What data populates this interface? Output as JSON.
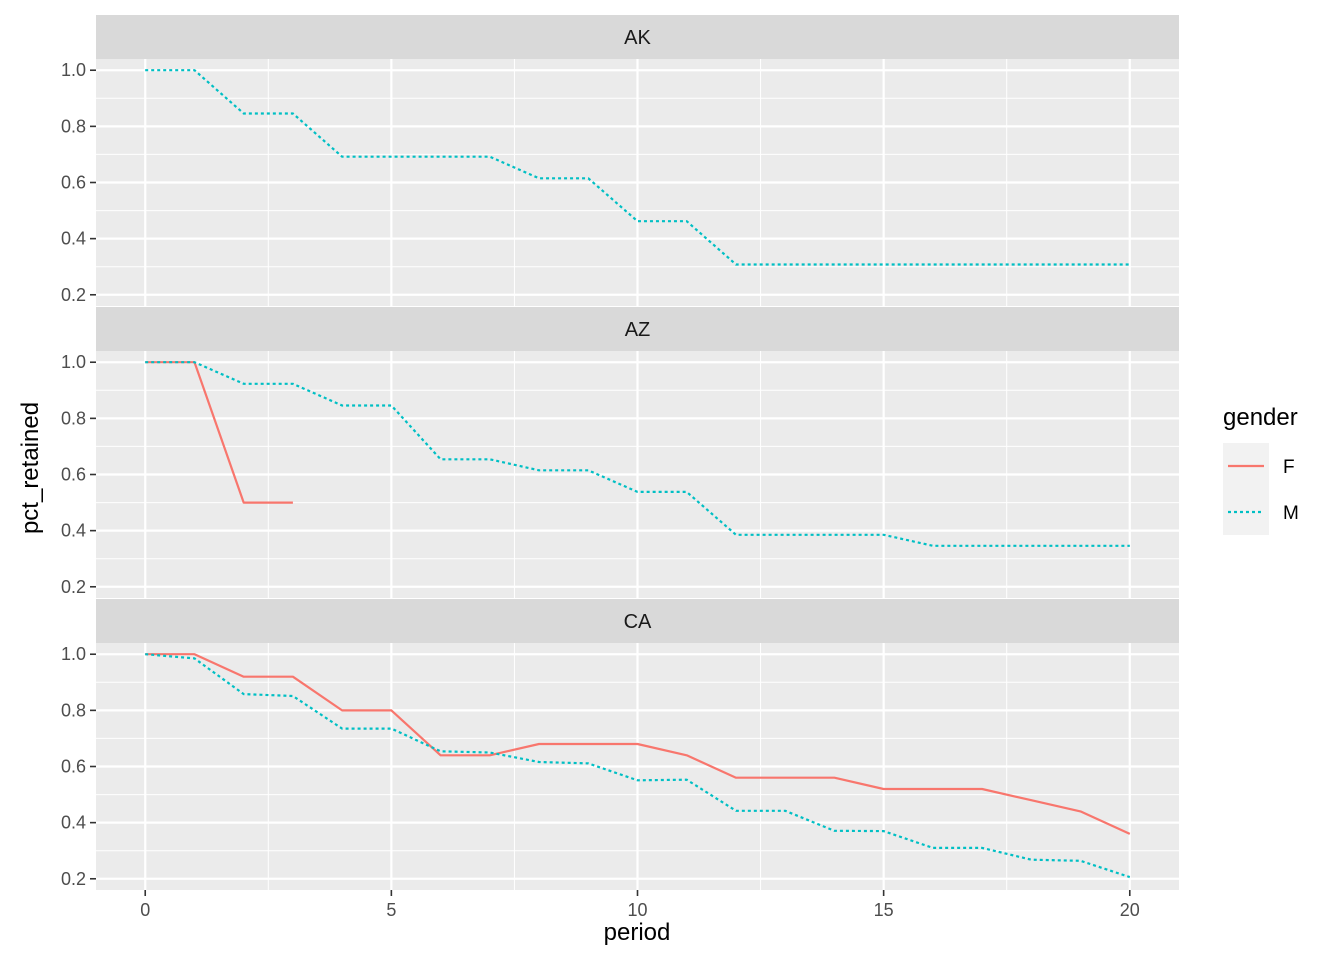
{
  "chart_data": {
    "type": "line",
    "facet_by": "state",
    "xlabel": "period",
    "ylabel": "pct_retained",
    "xlim": [
      -1,
      21
    ],
    "ylim": [
      0.16,
      1.04
    ],
    "x_ticks": [
      0,
      5,
      10,
      15,
      20
    ],
    "x_tick_labels": [
      "0",
      "5",
      "10",
      "15",
      "20"
    ],
    "y_ticks": [
      0.2,
      0.4,
      0.6,
      0.8,
      1.0
    ],
    "y_tick_labels": [
      "0.2",
      "0.4",
      "0.6",
      "0.8",
      "1.0"
    ],
    "grid": true,
    "legend": {
      "title": "gender",
      "position": "right",
      "entries": [
        {
          "label": "F",
          "color": "#F8766D",
          "linetype": "solid"
        },
        {
          "label": "M",
          "color": "#00BFC4",
          "linetype": "dotted"
        }
      ]
    },
    "panels": [
      {
        "title": "AK",
        "series": [
          {
            "name": "M",
            "x": [
              0,
              1,
              2,
              3,
              4,
              5,
              6,
              7,
              8,
              9,
              10,
              11,
              12,
              13,
              14,
              15,
              16,
              17,
              18,
              19,
              20
            ],
            "y": [
              1.0,
              1.0,
              0.846,
              0.846,
              0.692,
              0.692,
              0.692,
              0.692,
              0.615,
              0.615,
              0.462,
              0.462,
              0.308,
              0.308,
              0.308,
              0.308,
              0.308,
              0.308,
              0.308,
              0.308,
              0.308
            ]
          }
        ]
      },
      {
        "title": "AZ",
        "series": [
          {
            "name": "F",
            "x": [
              0,
              1,
              2,
              3
            ],
            "y": [
              1.0,
              1.0,
              0.5,
              0.5
            ]
          },
          {
            "name": "M",
            "x": [
              0,
              1,
              2,
              3,
              4,
              5,
              6,
              7,
              8,
              9,
              10,
              11,
              12,
              13,
              14,
              15,
              16,
              17,
              18,
              19,
              20
            ],
            "y": [
              1.0,
              1.0,
              0.923,
              0.923,
              0.846,
              0.846,
              0.654,
              0.654,
              0.615,
              0.615,
              0.538,
              0.538,
              0.385,
              0.385,
              0.385,
              0.385,
              0.346,
              0.346,
              0.346,
              0.346,
              0.346
            ]
          }
        ]
      },
      {
        "title": "CA",
        "series": [
          {
            "name": "F",
            "x": [
              0,
              1,
              2,
              3,
              4,
              5,
              6,
              7,
              8,
              9,
              10,
              11,
              12,
              13,
              14,
              15,
              16,
              17,
              18,
              19,
              20
            ],
            "y": [
              1.0,
              1.0,
              0.92,
              0.92,
              0.8,
              0.8,
              0.64,
              0.64,
              0.68,
              0.68,
              0.68,
              0.64,
              0.56,
              0.56,
              0.56,
              0.52,
              0.52,
              0.52,
              0.48,
              0.44,
              0.36
            ]
          },
          {
            "name": "M",
            "x": [
              0,
              1,
              2,
              3,
              4,
              5,
              6,
              7,
              8,
              9,
              10,
              11,
              12,
              13,
              14,
              15,
              16,
              17,
              18,
              19,
              20
            ],
            "y": [
              1.0,
              0.985,
              0.858,
              0.851,
              0.735,
              0.735,
              0.654,
              0.65,
              0.616,
              0.611,
              0.551,
              0.553,
              0.442,
              0.442,
              0.371,
              0.37,
              0.31,
              0.31,
              0.268,
              0.264,
              0.206
            ]
          }
        ]
      }
    ]
  }
}
